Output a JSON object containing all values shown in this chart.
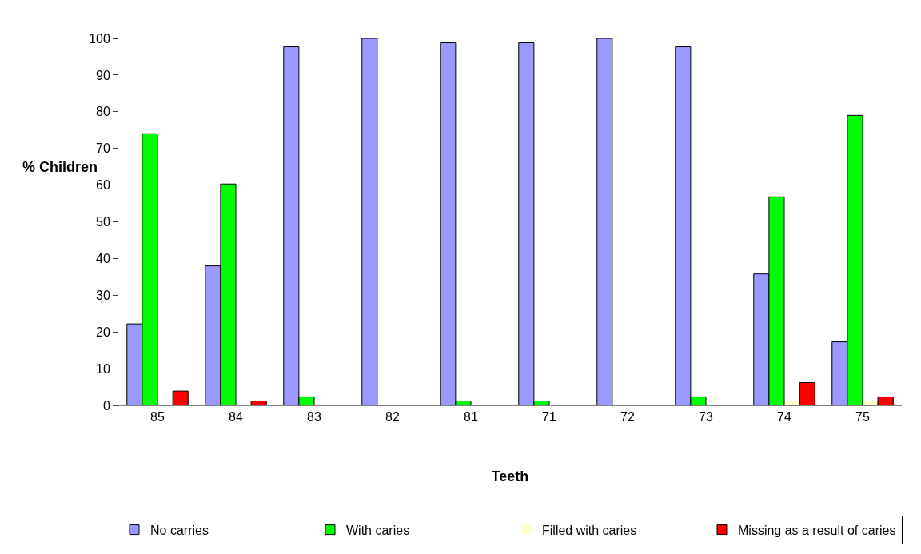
{
  "chart_data": {
    "type": "bar",
    "xlabel": "Teeth",
    "ylabel": "% Children",
    "categories": [
      "85",
      "84",
      "83",
      "82",
      "81",
      "71",
      "72",
      "73",
      "74",
      "75"
    ],
    "series": [
      {
        "name": "No carries",
        "color": "#9999ff",
        "values": [
          22.2,
          38,
          97.7,
          100,
          98.8,
          98.8,
          100,
          97.7,
          35.8,
          17.3
        ]
      },
      {
        "name": "With caries",
        "color": "#00ff00",
        "values": [
          74,
          60.3,
          2.3,
          0,
          1.2,
          1.2,
          0,
          2.3,
          56.8,
          79
        ]
      },
      {
        "name": "Filled with caries",
        "color": "#ffffcc",
        "values": [
          0,
          0,
          0,
          0,
          0,
          0,
          0,
          0,
          1.2,
          1.2
        ]
      },
      {
        "name": "Missing as a result of caries",
        "color": "#ff0000",
        "values": [
          3.9,
          1.2,
          0,
          0,
          0,
          0,
          0,
          0,
          6.2,
          2.3
        ]
      }
    ],
    "ylim": [
      0,
      100
    ],
    "yticks": [
      0,
      10,
      20,
      30,
      40,
      50,
      60,
      70,
      80,
      90,
      100
    ],
    "legend": "bottom"
  }
}
